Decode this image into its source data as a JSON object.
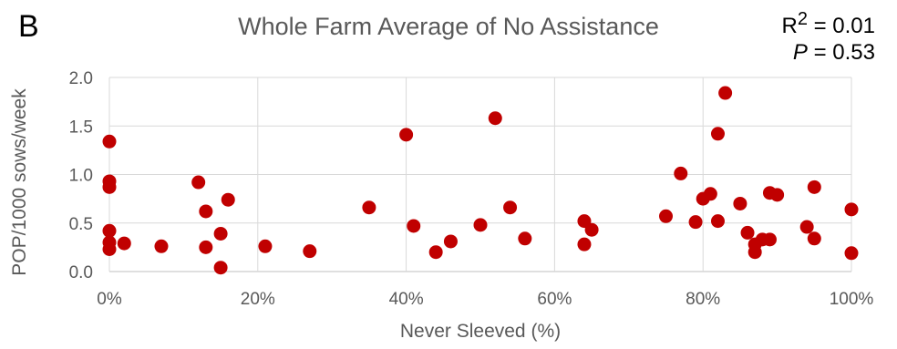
{
  "panel_label": "B",
  "stats": {
    "r2_label": "R",
    "r2_sup": "2",
    "r2_value": " = 0.01",
    "p_label": "P",
    "p_value": " = 0.53"
  },
  "chart_data": {
    "type": "scatter",
    "title": "Whole Farm Average of No Assistance",
    "xlabel": "Never Sleeved (%)",
    "ylabel": "POP/1000 sows/week",
    "xlim": [
      0,
      1
    ],
    "ylim": [
      0,
      2
    ],
    "xticks": [
      0,
      0.2,
      0.4,
      0.6,
      0.8,
      1.0
    ],
    "xtick_labels": [
      "0%",
      "20%",
      "40%",
      "60%",
      "80%",
      "100%"
    ],
    "yticks": [
      0,
      0.5,
      1.0,
      1.5,
      2.0
    ],
    "ytick_labels": [
      "0.0",
      "0.5",
      "1.0",
      "1.5",
      "2.0"
    ],
    "grid": true,
    "marker_color": "#c00000",
    "points": [
      {
        "x": 0.0,
        "y": 1.34
      },
      {
        "x": 0.0,
        "y": 0.93
      },
      {
        "x": 0.0,
        "y": 0.87
      },
      {
        "x": 0.0,
        "y": 0.42
      },
      {
        "x": 0.0,
        "y": 0.3
      },
      {
        "x": 0.0,
        "y": 0.23
      },
      {
        "x": 0.02,
        "y": 0.29
      },
      {
        "x": 0.07,
        "y": 0.26
      },
      {
        "x": 0.12,
        "y": 0.92
      },
      {
        "x": 0.13,
        "y": 0.62
      },
      {
        "x": 0.13,
        "y": 0.25
      },
      {
        "x": 0.15,
        "y": 0.39
      },
      {
        "x": 0.15,
        "y": 0.04
      },
      {
        "x": 0.16,
        "y": 0.74
      },
      {
        "x": 0.21,
        "y": 0.26
      },
      {
        "x": 0.27,
        "y": 0.21
      },
      {
        "x": 0.35,
        "y": 0.66
      },
      {
        "x": 0.4,
        "y": 1.41
      },
      {
        "x": 0.41,
        "y": 0.47
      },
      {
        "x": 0.44,
        "y": 0.2
      },
      {
        "x": 0.46,
        "y": 0.31
      },
      {
        "x": 0.5,
        "y": 0.48
      },
      {
        "x": 0.52,
        "y": 1.58
      },
      {
        "x": 0.54,
        "y": 0.66
      },
      {
        "x": 0.56,
        "y": 0.34
      },
      {
        "x": 0.64,
        "y": 0.28
      },
      {
        "x": 0.64,
        "y": 0.52
      },
      {
        "x": 0.65,
        "y": 0.43
      },
      {
        "x": 0.75,
        "y": 0.57
      },
      {
        "x": 0.77,
        "y": 1.01
      },
      {
        "x": 0.79,
        "y": 0.51
      },
      {
        "x": 0.8,
        "y": 0.75
      },
      {
        "x": 0.81,
        "y": 0.8
      },
      {
        "x": 0.82,
        "y": 1.42
      },
      {
        "x": 0.82,
        "y": 0.52
      },
      {
        "x": 0.83,
        "y": 1.84
      },
      {
        "x": 0.85,
        "y": 0.7
      },
      {
        "x": 0.86,
        "y": 0.4
      },
      {
        "x": 0.87,
        "y": 0.28
      },
      {
        "x": 0.87,
        "y": 0.2
      },
      {
        "x": 0.88,
        "y": 0.33
      },
      {
        "x": 0.89,
        "y": 0.33
      },
      {
        "x": 0.89,
        "y": 0.81
      },
      {
        "x": 0.9,
        "y": 0.79
      },
      {
        "x": 0.94,
        "y": 0.46
      },
      {
        "x": 0.95,
        "y": 0.87
      },
      {
        "x": 0.95,
        "y": 0.34
      },
      {
        "x": 1.0,
        "y": 0.64
      },
      {
        "x": 1.0,
        "y": 0.19
      }
    ]
  }
}
